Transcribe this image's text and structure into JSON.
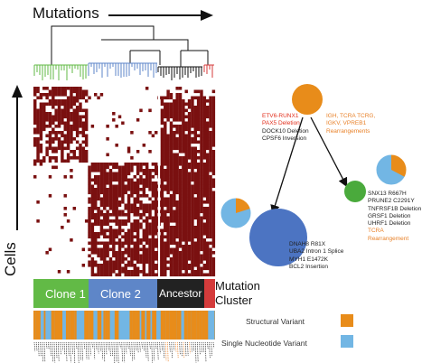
{
  "axis": {
    "mutations": "Mutations",
    "cells": "Cells"
  },
  "clusters": [
    {
      "label": "Clone 1",
      "color": "#62ba46"
    },
    {
      "label": "Clone 2",
      "color": "#5e86c8"
    },
    {
      "label": "Ancestor",
      "color": "#222222"
    },
    {
      "label": "",
      "color": "#d43b3b"
    }
  ],
  "cluster_axis_label": [
    "Mutation",
    "Cluster"
  ],
  "variant_colors": {
    "structural": "#e88c1a",
    "single_nucleotide": "#72b6e4"
  },
  "heatmap_color": "#7a1010",
  "tree": {
    "root": {
      "color": "#e88c1a",
      "left_labels": [
        "ETV6-RUNX1",
        "PAX5 Deletion",
        "DOCK10 Deletion",
        "CPSF6 Inversion"
      ],
      "left_label_colors": [
        "#e2301e",
        "#e2301e",
        "#222222",
        "#222222"
      ],
      "right_labels": [
        "IGH, TCRA TCRG,",
        "IGKV, VPREB1",
        "Rearrangements"
      ]
    },
    "blue_node": {
      "labels": [
        "DNAH8 R81X",
        "UBA2 Intron 1 Splice",
        "MYH1 E1472K",
        "BCL2 Insertion"
      ]
    },
    "green_node": {
      "black_labels": [
        "SNX13 R667H",
        "PRUNE2 C2291Y",
        "TNFRSF1B Deletion",
        "GRSF1 Deletion",
        "UHRF1 Deletion"
      ],
      "orange_labels": [
        "TCRA",
        "Rearrangement"
      ]
    }
  },
  "legend": [
    {
      "label": "Structural Variant",
      "color": "#e88c1a"
    },
    {
      "label": "Single Nucleotide Variant",
      "color": "#72b6e4"
    }
  ]
}
